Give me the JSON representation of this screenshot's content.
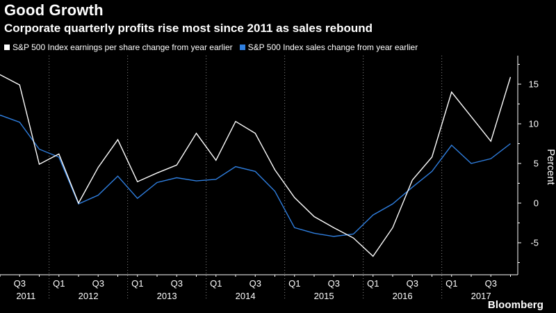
{
  "title": "Good Growth",
  "subtitle": "Corporate quarterly profits rise most since 2011 as sales rebound",
  "brand": "Bloomberg",
  "colors": {
    "background": "#000000",
    "series_eps": "#ffffff",
    "series_sales": "#2f7fe0",
    "grid": "#8a8a8a"
  },
  "chart_data": {
    "type": "line",
    "ylabel": "Percent",
    "ylim": [
      -8.5,
      18
    ],
    "yticks": [
      -5,
      0,
      5,
      10,
      15
    ],
    "grid": "vertical dotted at year boundaries",
    "legend_position": "top-left",
    "x": [
      "2011 Q2",
      "2011 Q3",
      "2011 Q4",
      "2012 Q1",
      "2012 Q2",
      "2012 Q3",
      "2012 Q4",
      "2013 Q1",
      "2013 Q2",
      "2013 Q3",
      "2013 Q4",
      "2014 Q1",
      "2014 Q2",
      "2014 Q3",
      "2014 Q4",
      "2015 Q1",
      "2015 Q2",
      "2015 Q3",
      "2015 Q4",
      "2016 Q1",
      "2016 Q2",
      "2016 Q3",
      "2016 Q4",
      "2017 Q1",
      "2017 Q2",
      "2017 Q3",
      "2017 Q4"
    ],
    "x_quarter_labels": [
      "Q3",
      "Q1",
      "Q3",
      "Q1",
      "Q3",
      "Q1",
      "Q3",
      "Q1",
      "Q3",
      "Q1",
      "Q3",
      "Q1",
      "Q3"
    ],
    "x_year_labels": [
      "2011",
      "2012",
      "2013",
      "2014",
      "2015",
      "2016",
      "2017"
    ],
    "series": [
      {
        "name": "S&P 500 Index earnings per share change from year earlier",
        "values": [
          16.2,
          14.9,
          4.9,
          6.2,
          0.0,
          4.5,
          8.0,
          2.7,
          3.8,
          4.8,
          8.8,
          5.4,
          10.3,
          8.8,
          4.2,
          0.7,
          -1.7,
          -3.1,
          -4.4,
          -6.7,
          -3.1,
          2.9,
          5.8,
          14.0,
          10.9,
          7.8,
          15.9
        ]
      },
      {
        "name": "S&P 500 Index sales change from year earlier",
        "values": [
          11.1,
          10.2,
          6.8,
          5.8,
          -0.1,
          1.0,
          3.4,
          0.6,
          2.6,
          3.2,
          2.8,
          3.0,
          4.6,
          4.0,
          1.5,
          -3.1,
          -3.8,
          -4.2,
          -3.9,
          -1.5,
          -0.1,
          2.0,
          4.0,
          7.3,
          5.0,
          5.6,
          7.5
        ]
      }
    ]
  }
}
